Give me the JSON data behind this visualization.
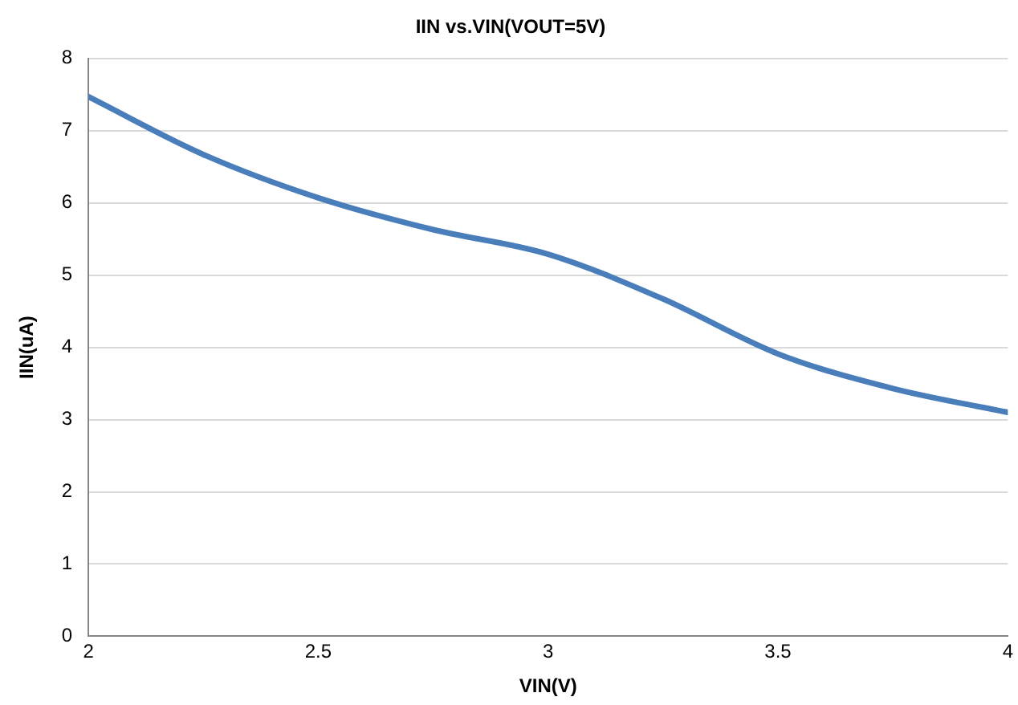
{
  "chart_data": {
    "type": "line",
    "title": "IIN vs.VIN(VOUT=5V)",
    "xlabel": "VIN(V)",
    "ylabel": "IIN(uA)",
    "x": [
      2,
      2.25,
      2.5,
      2.75,
      3,
      3.25,
      3.5,
      3.75,
      4
    ],
    "series": [
      {
        "color": "#4a7ebb",
        "values": [
          7.47,
          6.67,
          6.07,
          5.63,
          5.29,
          4.67,
          3.91,
          3.43,
          3.1
        ]
      }
    ],
    "xlim": [
      2,
      4
    ],
    "xticks": [
      2,
      2.5,
      3,
      3.5,
      4
    ],
    "ylim": [
      0,
      8
    ],
    "yticks": [
      0,
      1,
      2,
      3,
      4,
      5,
      6,
      7,
      8
    ],
    "grid": "y",
    "legend": false,
    "marker": "none",
    "line_style": "solid"
  }
}
